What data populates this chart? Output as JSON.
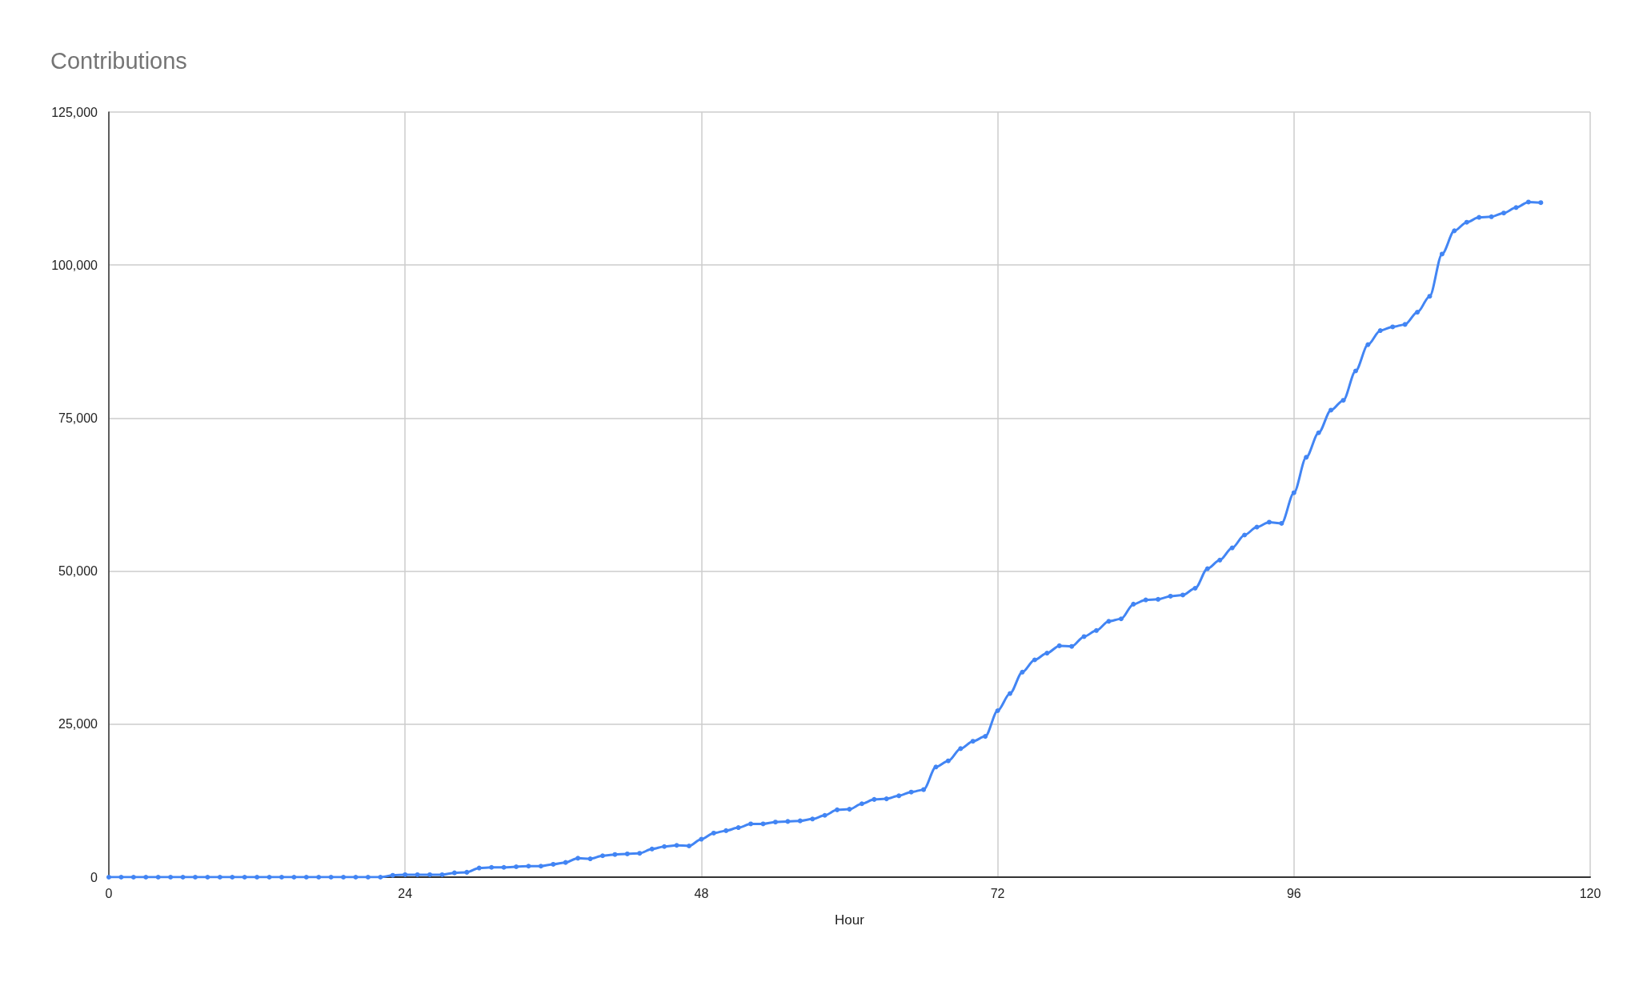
{
  "chart_data": {
    "type": "line",
    "title": "Contributions",
    "xlabel": "Hour",
    "x": [
      0,
      1,
      2,
      3,
      4,
      5,
      6,
      7,
      8,
      9,
      10,
      11,
      12,
      13,
      14,
      15,
      16,
      17,
      18,
      19,
      20,
      21,
      22,
      23,
      24,
      25,
      26,
      27,
      28,
      29,
      30,
      31,
      32,
      33,
      34,
      35,
      36,
      37,
      38,
      39,
      40,
      41,
      42,
      43,
      44,
      45,
      46,
      47,
      48,
      49,
      50,
      51,
      52,
      53,
      54,
      55,
      56,
      57,
      58,
      59,
      60,
      61,
      62,
      63,
      64,
      65,
      66,
      67,
      68,
      69,
      70,
      71,
      72,
      73,
      74,
      75,
      76,
      77,
      78,
      79,
      80,
      81,
      82,
      83,
      84,
      85,
      86,
      87,
      88,
      89,
      90,
      91,
      92,
      93,
      94,
      95,
      96,
      97,
      98,
      99,
      100,
      101,
      102,
      103,
      104,
      105,
      106,
      107,
      108,
      109,
      110,
      111,
      112,
      113,
      114,
      115,
      116
    ],
    "series": [
      {
        "color": "#4285f4",
        "values": [
          0,
          0,
          0,
          0,
          0,
          0,
          0,
          0,
          0,
          0,
          0,
          0,
          0,
          0,
          0,
          0,
          0,
          0,
          0,
          0,
          0,
          0,
          0,
          300,
          400,
          400,
          400,
          400,
          700,
          800,
          1500,
          1600,
          1600,
          1700,
          1800,
          1800,
          2100,
          2400,
          3100,
          3000,
          3500,
          3700,
          3800,
          3900,
          4600,
          5000,
          5200,
          5100,
          6200,
          7200,
          7600,
          8100,
          8700,
          8700,
          9000,
          9100,
          9200,
          9500,
          10100,
          11000,
          11100,
          12000,
          12700,
          12800,
          13300,
          13900,
          14300,
          18000,
          19000,
          21000,
          22200,
          23000,
          27200,
          30000,
          33500,
          35500,
          36600,
          37800,
          37700,
          39300,
          40300,
          41800,
          42200,
          44600,
          45300,
          45400,
          45900,
          46100,
          47200,
          50400,
          51800,
          53800,
          55900,
          57200,
          58000,
          57800,
          62800,
          68600,
          72600,
          76300,
          77900,
          82700,
          87000,
          89300,
          89900,
          90300,
          92300,
          94900,
          101800,
          105600,
          107000,
          107800,
          107900,
          108500,
          109400,
          110300,
          110200
        ]
      }
    ],
    "xlim": [
      0,
      120
    ],
    "xticks": [
      0,
      24,
      48,
      72,
      96,
      120
    ],
    "ylim": [
      0,
      125000
    ],
    "yticks": [
      0,
      {
        "value": 25000,
        "label": "25,000"
      },
      {
        "value": 50000,
        "label": "50,000"
      },
      {
        "value": 75000,
        "label": "75,000"
      },
      {
        "value": 100000,
        "label": "100,000"
      },
      {
        "value": 125000,
        "label": "125,000"
      }
    ],
    "grid": true,
    "marker": "circle",
    "line_style": "solid"
  }
}
